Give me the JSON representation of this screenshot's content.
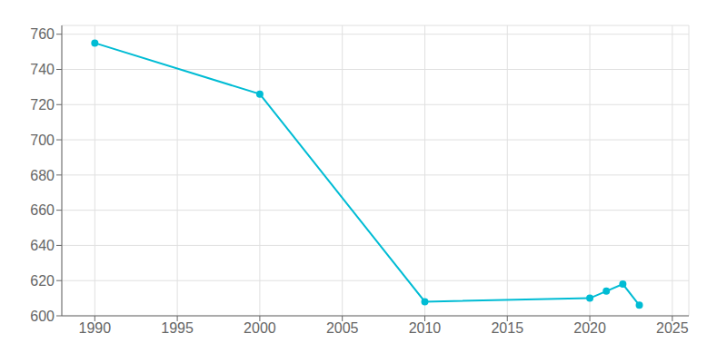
{
  "chart_data": {
    "type": "line",
    "x": [
      1990,
      2000,
      2010,
      2020,
      2021,
      2022,
      2023
    ],
    "values": [
      755,
      726,
      608,
      610,
      614,
      618,
      606
    ],
    "color": "#00BCD4",
    "xlim": [
      1988,
      2026
    ],
    "ylim": [
      600,
      765
    ],
    "xticks": [
      1990,
      1995,
      2000,
      2005,
      2010,
      2015,
      2020,
      2025
    ],
    "yticks": [
      600,
      620,
      640,
      660,
      680,
      700,
      720,
      740,
      760
    ],
    "grid": true,
    "marker": "circle"
  }
}
